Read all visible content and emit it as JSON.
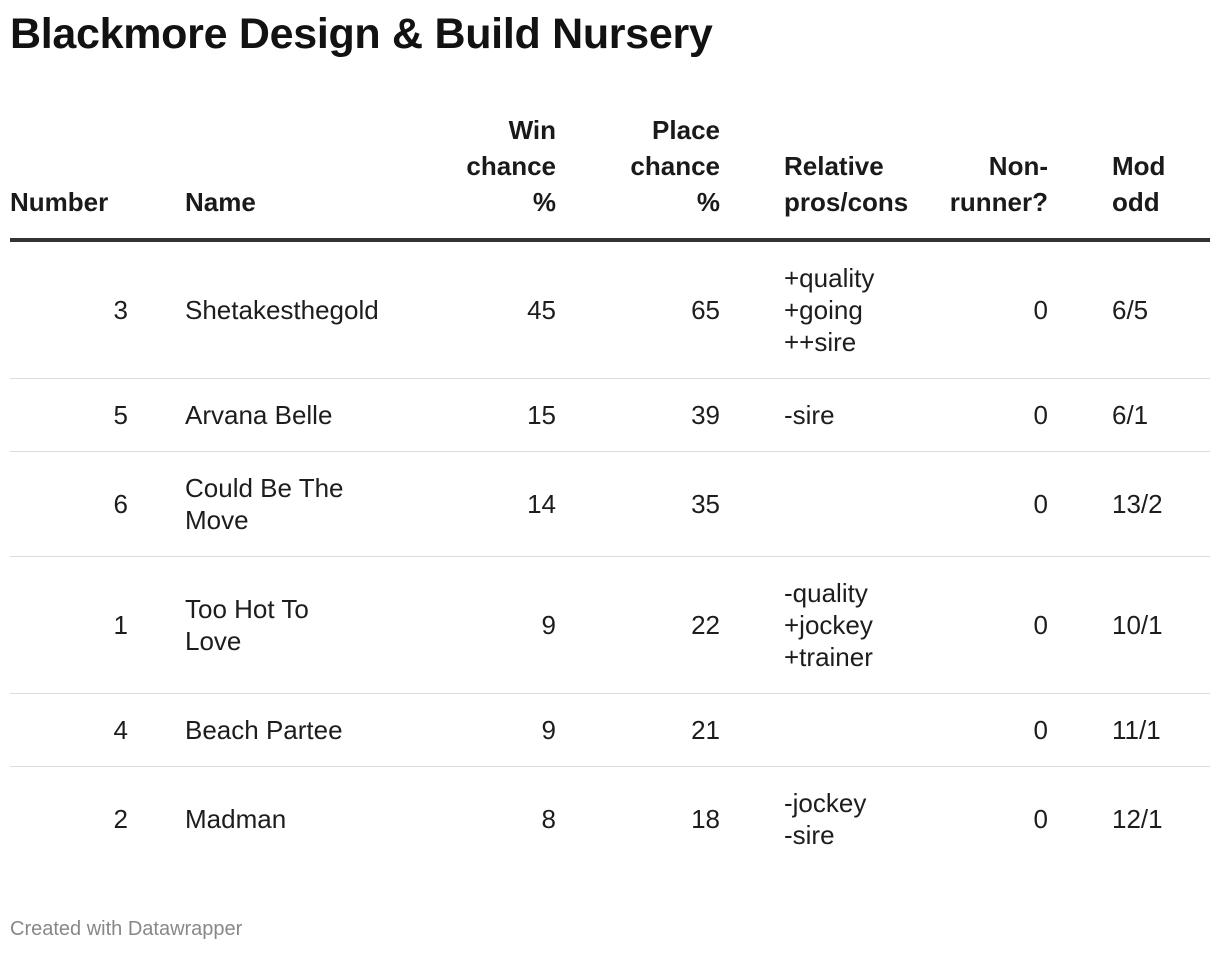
{
  "title": "Blackmore Design & Build Nursery",
  "footer": "Created with Datawrapper",
  "chart_data": {
    "type": "table",
    "columns": {
      "number": "Number",
      "name": "Name",
      "win": [
        "Win",
        "chance",
        "%"
      ],
      "place": [
        "Place",
        "chance",
        "%"
      ],
      "relative": [
        "Relative",
        "pros/cons"
      ],
      "nonrunner": [
        "Non-",
        "runner?"
      ],
      "odds": [
        "Mod",
        "odd"
      ]
    },
    "rows": [
      {
        "number": "3",
        "name": "Shetakesthegold",
        "win": "45",
        "place": "65",
        "relative": [
          "+quality",
          "+going",
          "++sire"
        ],
        "nonrunner": "0",
        "odds": "6/5"
      },
      {
        "number": "5",
        "name": "Arvana Belle",
        "win": "15",
        "place": "39",
        "relative": [
          "-sire"
        ],
        "nonrunner": "0",
        "odds": "6/1"
      },
      {
        "number": "6",
        "name": "Could Be The Move",
        "win": "14",
        "place": "35",
        "relative": [],
        "nonrunner": "0",
        "odds": "13/2"
      },
      {
        "number": "1",
        "name": "Too Hot To Love",
        "win": "9",
        "place": "22",
        "relative": [
          "-quality",
          "+jockey",
          "+trainer"
        ],
        "nonrunner": "0",
        "odds": "10/1"
      },
      {
        "number": "4",
        "name": "Beach Partee",
        "win": "9",
        "place": "21",
        "relative": [],
        "nonrunner": "0",
        "odds": "11/1"
      },
      {
        "number": "2",
        "name": "Madman",
        "win": "8",
        "place": "18",
        "relative": [
          "-jockey",
          "-sire"
        ],
        "nonrunner": "0",
        "odds": "12/1"
      }
    ]
  }
}
